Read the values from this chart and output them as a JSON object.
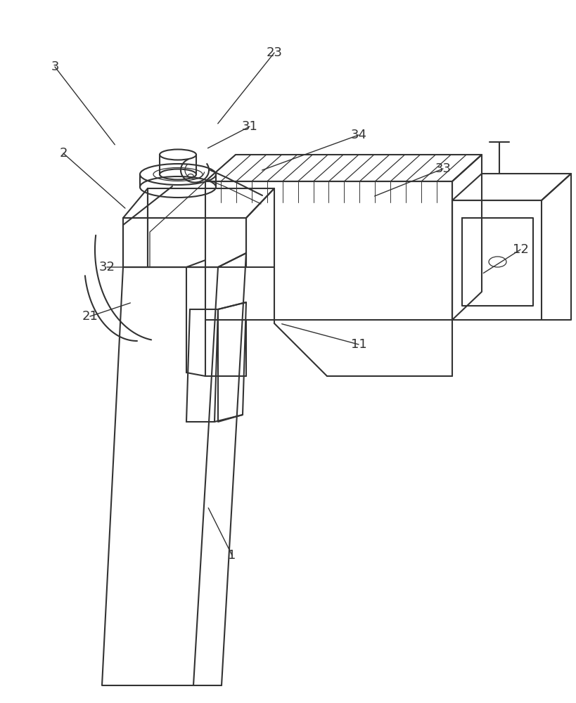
{
  "bg_color": "#ffffff",
  "lc": "#333333",
  "lw": 1.5,
  "lw_thin": 0.9,
  "fs": 13,
  "annotations": [
    [
      "3",
      78,
      95,
      165,
      208
    ],
    [
      "2",
      90,
      218,
      180,
      298
    ],
    [
      "23",
      390,
      75,
      308,
      178
    ],
    [
      "31",
      355,
      180,
      293,
      212
    ],
    [
      "34",
      510,
      192,
      370,
      243
    ],
    [
      "33",
      630,
      240,
      530,
      280
    ],
    [
      "12",
      740,
      355,
      685,
      390
    ],
    [
      "32",
      152,
      380,
      215,
      380
    ],
    [
      "21",
      128,
      450,
      188,
      430
    ],
    [
      "11",
      510,
      490,
      398,
      460
    ],
    [
      "1",
      330,
      790,
      295,
      720
    ]
  ]
}
